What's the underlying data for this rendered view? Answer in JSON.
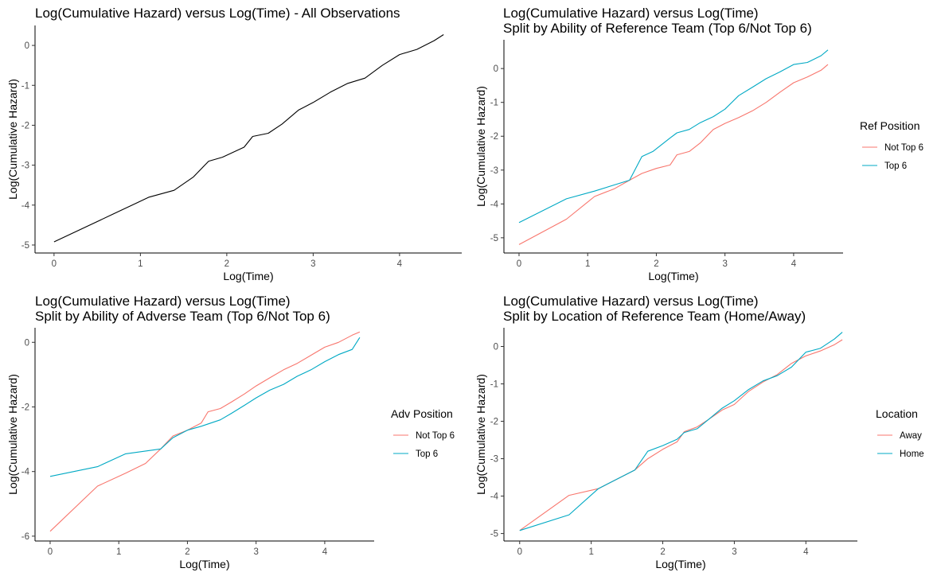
{
  "colors": {
    "ref": "#F8766D",
    "alt": "#00A9C4",
    "single": "#000000"
  },
  "chart_data": [
    {
      "type": "line",
      "title": [
        "Log(Cumulative Hazard) versus Log(Time) - All Observations"
      ],
      "xlabel": "Log(Time)",
      "ylabel": "Log(Cumulative Hazard)",
      "xlim": [
        -0.22,
        4.72
      ],
      "ylim": [
        -5.2,
        0.5
      ],
      "xticks": [
        0,
        1,
        2,
        3,
        4
      ],
      "yticks": [
        -5,
        -4,
        -3,
        -2,
        -1,
        0
      ],
      "legend": null,
      "series": [
        {
          "color_key": "single",
          "points": [
            [
              0,
              -4.92
            ],
            [
              0.69,
              -4.22
            ],
            [
              1.1,
              -3.8
            ],
            [
              1.39,
              -3.63
            ],
            [
              1.61,
              -3.3
            ],
            [
              1.79,
              -2.9
            ],
            [
              1.95,
              -2.8
            ],
            [
              2.2,
              -2.55
            ],
            [
              2.3,
              -2.28
            ],
            [
              2.48,
              -2.2
            ],
            [
              2.64,
              -1.97
            ],
            [
              2.83,
              -1.62
            ],
            [
              3.0,
              -1.43
            ],
            [
              3.2,
              -1.17
            ],
            [
              3.4,
              -0.95
            ],
            [
              3.6,
              -0.82
            ],
            [
              3.8,
              -0.5
            ],
            [
              4.0,
              -0.23
            ],
            [
              4.2,
              -0.1
            ],
            [
              4.4,
              0.12
            ],
            [
              4.51,
              0.27
            ]
          ]
        }
      ]
    },
    {
      "type": "line",
      "title": [
        "Log(Cumulative Hazard) versus Log(Time)",
        "Split by Ability of Reference Team (Top 6/Not Top 6)"
      ],
      "xlabel": "Log(Time)",
      "ylabel": "Log(Cumulative Hazard)",
      "xlim": [
        -0.22,
        4.72
      ],
      "ylim": [
        -5.45,
        0.85
      ],
      "xticks": [
        0,
        1,
        2,
        3,
        4
      ],
      "yticks": [
        -5,
        -4,
        -3,
        -2,
        -1,
        0
      ],
      "legend": {
        "title": "Ref Position",
        "entries": [
          {
            "label": "Not Top 6",
            "color_key": "ref"
          },
          {
            "label": "Top 6",
            "color_key": "alt"
          }
        ]
      },
      "series": [
        {
          "name": "Not Top 6",
          "color_key": "ref",
          "points": [
            [
              0,
              -5.2
            ],
            [
              0.69,
              -4.45
            ],
            [
              1.1,
              -3.78
            ],
            [
              1.39,
              -3.55
            ],
            [
              1.61,
              -3.3
            ],
            [
              1.79,
              -3.1
            ],
            [
              2.0,
              -2.95
            ],
            [
              2.2,
              -2.85
            ],
            [
              2.3,
              -2.55
            ],
            [
              2.48,
              -2.45
            ],
            [
              2.64,
              -2.2
            ],
            [
              2.83,
              -1.8
            ],
            [
              3.0,
              -1.62
            ],
            [
              3.2,
              -1.45
            ],
            [
              3.4,
              -1.25
            ],
            [
              3.6,
              -1.0
            ],
            [
              3.8,
              -0.7
            ],
            [
              4.0,
              -0.42
            ],
            [
              4.2,
              -0.25
            ],
            [
              4.4,
              -0.05
            ],
            [
              4.5,
              0.12
            ]
          ]
        },
        {
          "name": "Top 6",
          "color_key": "alt",
          "points": [
            [
              0,
              -4.55
            ],
            [
              0.69,
              -3.85
            ],
            [
              1.1,
              -3.62
            ],
            [
              1.61,
              -3.3
            ],
            [
              1.79,
              -2.6
            ],
            [
              1.95,
              -2.45
            ],
            [
              2.2,
              -2.05
            ],
            [
              2.3,
              -1.9
            ],
            [
              2.48,
              -1.8
            ],
            [
              2.64,
              -1.6
            ],
            [
              2.83,
              -1.42
            ],
            [
              3.0,
              -1.2
            ],
            [
              3.2,
              -0.8
            ],
            [
              3.4,
              -0.55
            ],
            [
              3.6,
              -0.3
            ],
            [
              3.8,
              -0.1
            ],
            [
              4.0,
              0.12
            ],
            [
              4.2,
              0.18
            ],
            [
              4.4,
              0.38
            ],
            [
              4.5,
              0.55
            ]
          ]
        }
      ]
    },
    {
      "type": "line",
      "title": [
        "Log(Cumulative Hazard) versus Log(Time)",
        "Split by Ability of Adverse Team (Top 6/Not Top 6)"
      ],
      "xlabel": "Log(Time)",
      "ylabel": "Log(Cumulative Hazard)",
      "xlim": [
        -0.22,
        4.72
      ],
      "ylim": [
        -6.15,
        0.45
      ],
      "xticks": [
        0,
        1,
        2,
        3,
        4
      ],
      "yticks": [
        -6,
        -4,
        -2,
        0
      ],
      "legend": {
        "title": "Adv Position",
        "entries": [
          {
            "label": "Not Top 6",
            "color_key": "ref"
          },
          {
            "label": "Top 6",
            "color_key": "alt"
          }
        ]
      },
      "series": [
        {
          "name": "Not Top 6",
          "color_key": "ref",
          "points": [
            [
              0,
              -5.85
            ],
            [
              0.69,
              -4.45
            ],
            [
              1.1,
              -4.05
            ],
            [
              1.39,
              -3.75
            ],
            [
              1.61,
              -3.3
            ],
            [
              1.79,
              -2.9
            ],
            [
              2.0,
              -2.72
            ],
            [
              2.2,
              -2.5
            ],
            [
              2.3,
              -2.15
            ],
            [
              2.48,
              -2.05
            ],
            [
              2.64,
              -1.85
            ],
            [
              2.83,
              -1.6
            ],
            [
              3.0,
              -1.35
            ],
            [
              3.2,
              -1.1
            ],
            [
              3.4,
              -0.85
            ],
            [
              3.6,
              -0.65
            ],
            [
              3.8,
              -0.4
            ],
            [
              4.0,
              -0.15
            ],
            [
              4.2,
              0.0
            ],
            [
              4.4,
              0.22
            ],
            [
              4.51,
              0.32
            ]
          ]
        },
        {
          "name": "Top 6",
          "color_key": "alt",
          "points": [
            [
              0,
              -4.15
            ],
            [
              0.69,
              -3.85
            ],
            [
              1.1,
              -3.45
            ],
            [
              1.61,
              -3.3
            ],
            [
              1.79,
              -2.95
            ],
            [
              2.0,
              -2.72
            ],
            [
              2.2,
              -2.6
            ],
            [
              2.48,
              -2.4
            ],
            [
              2.64,
              -2.2
            ],
            [
              2.83,
              -1.95
            ],
            [
              3.0,
              -1.72
            ],
            [
              3.2,
              -1.48
            ],
            [
              3.4,
              -1.3
            ],
            [
              3.6,
              -1.05
            ],
            [
              3.8,
              -0.85
            ],
            [
              4.0,
              -0.6
            ],
            [
              4.2,
              -0.38
            ],
            [
              4.4,
              -0.22
            ],
            [
              4.51,
              0.15
            ]
          ]
        }
      ]
    },
    {
      "type": "line",
      "title": [
        "Log(Cumulative Hazard) versus Log(Time)",
        "Split by Location of Reference Team (Home/Away)"
      ],
      "xlabel": "Log(Time)",
      "ylabel": "Log(Cumulative Hazard)",
      "xlim": [
        -0.22,
        4.72
      ],
      "ylim": [
        -5.2,
        0.5
      ],
      "xticks": [
        0,
        1,
        2,
        3,
        4
      ],
      "yticks": [
        -5,
        -4,
        -3,
        -2,
        -1,
        0
      ],
      "legend": {
        "title": "Location",
        "entries": [
          {
            "label": "Away",
            "color_key": "ref"
          },
          {
            "label": "Home",
            "color_key": "alt"
          }
        ]
      },
      "series": [
        {
          "name": "Away",
          "color_key": "ref",
          "points": [
            [
              0,
              -4.92
            ],
            [
              0.69,
              -3.98
            ],
            [
              1.1,
              -3.8
            ],
            [
              1.61,
              -3.3
            ],
            [
              1.79,
              -3.0
            ],
            [
              2.0,
              -2.75
            ],
            [
              2.2,
              -2.55
            ],
            [
              2.3,
              -2.28
            ],
            [
              2.48,
              -2.15
            ],
            [
              2.64,
              -1.95
            ],
            [
              2.83,
              -1.7
            ],
            [
              3.0,
              -1.55
            ],
            [
              3.2,
              -1.2
            ],
            [
              3.4,
              -0.95
            ],
            [
              3.6,
              -0.75
            ],
            [
              3.8,
              -0.45
            ],
            [
              4.0,
              -0.25
            ],
            [
              4.2,
              -0.12
            ],
            [
              4.4,
              0.05
            ],
            [
              4.51,
              0.18
            ]
          ]
        },
        {
          "name": "Home",
          "color_key": "alt",
          "points": [
            [
              0,
              -4.92
            ],
            [
              0.69,
              -4.5
            ],
            [
              1.1,
              -3.8
            ],
            [
              1.61,
              -3.3
            ],
            [
              1.79,
              -2.8
            ],
            [
              2.0,
              -2.65
            ],
            [
              2.2,
              -2.48
            ],
            [
              2.3,
              -2.3
            ],
            [
              2.48,
              -2.2
            ],
            [
              2.64,
              -1.95
            ],
            [
              2.83,
              -1.65
            ],
            [
              3.0,
              -1.45
            ],
            [
              3.2,
              -1.15
            ],
            [
              3.4,
              -0.92
            ],
            [
              3.6,
              -0.78
            ],
            [
              3.8,
              -0.55
            ],
            [
              4.0,
              -0.15
            ],
            [
              4.2,
              -0.05
            ],
            [
              4.4,
              0.2
            ],
            [
              4.51,
              0.38
            ]
          ]
        }
      ]
    }
  ]
}
